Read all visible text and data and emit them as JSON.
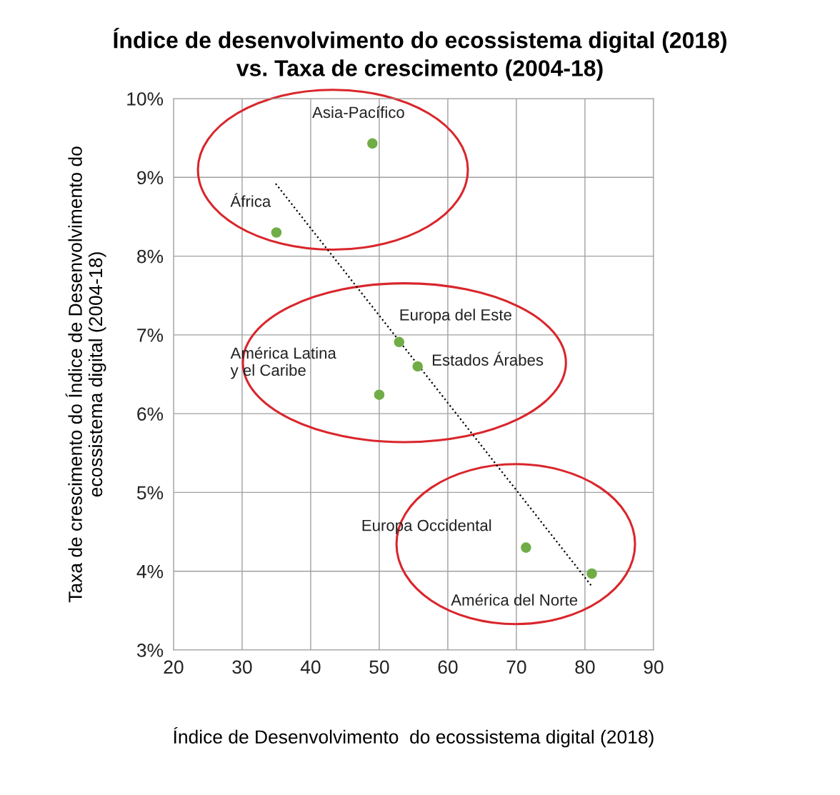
{
  "chart_data": {
    "type": "scatter",
    "title": "Índice de desenvolvimento do ecossistema digital (2018)\nvs. Taxa de crescimento (2004-18)",
    "xlabel": "Índice de Desenvolvimento  do ecossistema digital (2018)",
    "ylabel": "Taxa de crescimento do Índice de Desenvolvimento do\necossistema digital (2004-18)",
    "xlim": [
      20,
      90
    ],
    "xticks": [
      20,
      30,
      40,
      50,
      60,
      70,
      80,
      90
    ],
    "ylim": [
      3,
      10
    ],
    "yticks": [
      {
        "value": 3,
        "label": "3%"
      },
      {
        "value": 4,
        "label": "4%"
      },
      {
        "value": 5,
        "label": "5%"
      },
      {
        "value": 6,
        "label": "6%"
      },
      {
        "value": 7,
        "label": "7%"
      },
      {
        "value": 8,
        "label": "8%"
      },
      {
        "value": 9,
        "label": "9%"
      },
      {
        "value": 10,
        "label": "10%"
      }
    ],
    "grid": true,
    "marker": "circle",
    "series": [
      {
        "color": "#70ad47",
        "x": [
          49,
          35,
          52.9,
          55.6,
          50,
          71.4,
          81
        ],
        "values": [
          9.43,
          8.3,
          6.91,
          6.6,
          6.24,
          4.3,
          3.97
        ]
      },
      {
        "type": "line",
        "line_style": "dotted",
        "marker": "none",
        "color": "#000000",
        "x": [
          34.9,
          80.9
        ],
        "values": [
          8.92,
          3.82
        ]
      }
    ],
    "annotations": [
      {
        "text": "Asia-Pacífico",
        "x": 49,
        "y": 9.43
      },
      {
        "text": "África",
        "x": 35,
        "y": 8.3
      },
      {
        "text": "Europa del Este",
        "x": 52.9,
        "y": 6.91
      },
      {
        "text": "Estados Árabes",
        "x": 55.6,
        "y": 6.6
      },
      {
        "text": "América Latina\ny el Caribe",
        "x": 50,
        "y": 6.24
      },
      {
        "text": "Europa Occidental",
        "x": 71.4,
        "y": 4.3
      },
      {
        "text": "América del Norte",
        "x": 81,
        "y": 3.97
      }
    ]
  }
}
